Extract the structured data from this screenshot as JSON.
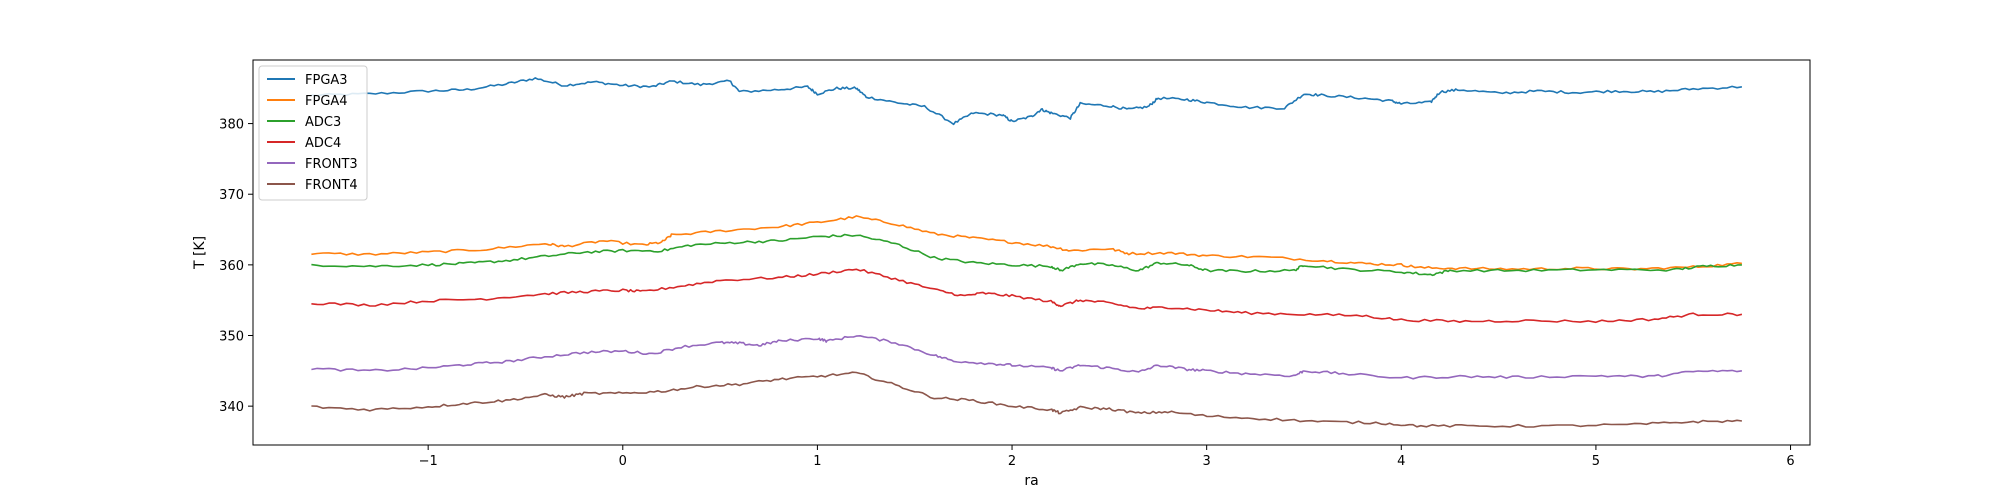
{
  "chart_data": {
    "type": "line",
    "xlabel": "ra",
    "ylabel": "T [K]",
    "xlim": [
      -1.9,
      6.1
    ],
    "ylim": [
      334.5,
      389.0
    ],
    "xticks": [
      -1,
      0,
      1,
      2,
      3,
      4,
      5,
      6
    ],
    "yticks": [
      340,
      350,
      360,
      370,
      380
    ],
    "grid": false,
    "legend_position": "top-left",
    "series": [
      {
        "name": "FPGA3",
        "color": "#1f77b4",
        "points": [
          [
            -1.6,
            384.0
          ],
          [
            -1.3,
            384.2
          ],
          [
            -1.0,
            384.6
          ],
          [
            -0.8,
            384.8
          ],
          [
            -0.6,
            385.6
          ],
          [
            -0.45,
            386.4
          ],
          [
            -0.3,
            385.4
          ],
          [
            -0.15,
            385.9
          ],
          [
            0.0,
            385.4
          ],
          [
            0.15,
            385.2
          ],
          [
            0.25,
            386.0
          ],
          [
            0.4,
            385.5
          ],
          [
            0.55,
            386.0
          ],
          [
            0.6,
            384.5
          ],
          [
            0.8,
            384.8
          ],
          [
            0.95,
            385.2
          ],
          [
            1.0,
            384.2
          ],
          [
            1.1,
            385.0
          ],
          [
            1.2,
            385.0
          ],
          [
            1.25,
            383.8
          ],
          [
            1.4,
            383.0
          ],
          [
            1.55,
            382.4
          ],
          [
            1.7,
            380.0
          ],
          [
            1.8,
            381.5
          ],
          [
            1.95,
            381.2
          ],
          [
            2.0,
            380.3
          ],
          [
            2.1,
            381.0
          ],
          [
            2.15,
            382.0
          ],
          [
            2.2,
            381.5
          ],
          [
            2.3,
            380.8
          ],
          [
            2.35,
            382.8
          ],
          [
            2.5,
            382.5
          ],
          [
            2.6,
            382.0
          ],
          [
            2.7,
            382.4
          ],
          [
            2.75,
            383.6
          ],
          [
            2.9,
            383.4
          ],
          [
            3.0,
            383.0
          ],
          [
            3.2,
            382.3
          ],
          [
            3.4,
            382.2
          ],
          [
            3.5,
            384.2
          ],
          [
            3.6,
            384.0
          ],
          [
            3.8,
            383.6
          ],
          [
            3.95,
            383.2
          ],
          [
            4.0,
            382.8
          ],
          [
            4.15,
            383.0
          ],
          [
            4.2,
            384.5
          ],
          [
            4.3,
            384.8
          ],
          [
            4.5,
            384.3
          ],
          [
            4.7,
            384.6
          ],
          [
            4.9,
            384.4
          ],
          [
            5.1,
            384.6
          ],
          [
            5.3,
            384.5
          ],
          [
            5.5,
            384.9
          ],
          [
            5.75,
            385.2
          ]
        ]
      },
      {
        "name": "FPGA4",
        "color": "#ff7f0e",
        "points": [
          [
            -1.6,
            361.6
          ],
          [
            -1.3,
            361.5
          ],
          [
            -1.0,
            361.8
          ],
          [
            -0.7,
            362.2
          ],
          [
            -0.4,
            363.0
          ],
          [
            -0.3,
            362.6
          ],
          [
            -0.1,
            363.4
          ],
          [
            0.1,
            362.8
          ],
          [
            0.2,
            363.2
          ],
          [
            0.25,
            364.2
          ],
          [
            0.5,
            364.8
          ],
          [
            0.8,
            365.4
          ],
          [
            1.0,
            366.0
          ],
          [
            1.2,
            366.8
          ],
          [
            1.4,
            365.8
          ],
          [
            1.6,
            364.4
          ],
          [
            1.8,
            363.8
          ],
          [
            2.0,
            363.2
          ],
          [
            2.2,
            362.6
          ],
          [
            2.3,
            362.0
          ],
          [
            2.5,
            362.3
          ],
          [
            2.6,
            361.6
          ],
          [
            2.8,
            361.7
          ],
          [
            3.0,
            361.3
          ],
          [
            3.3,
            361.1
          ],
          [
            3.6,
            360.6
          ],
          [
            3.8,
            360.2
          ],
          [
            4.0,
            360.0
          ],
          [
            4.1,
            359.6
          ],
          [
            4.3,
            359.5
          ],
          [
            4.6,
            359.4
          ],
          [
            4.9,
            359.5
          ],
          [
            5.2,
            359.4
          ],
          [
            5.5,
            359.7
          ],
          [
            5.75,
            360.2
          ]
        ]
      },
      {
        "name": "ADC3",
        "color": "#2ca02c",
        "points": [
          [
            -1.6,
            360.0
          ],
          [
            -1.3,
            359.8
          ],
          [
            -1.0,
            360.0
          ],
          [
            -0.8,
            360.2
          ],
          [
            -0.6,
            360.6
          ],
          [
            -0.4,
            361.2
          ],
          [
            -0.2,
            361.8
          ],
          [
            0.0,
            362.0
          ],
          [
            0.2,
            362.0
          ],
          [
            0.35,
            362.8
          ],
          [
            0.6,
            363.2
          ],
          [
            0.8,
            363.4
          ],
          [
            1.0,
            364.0
          ],
          [
            1.2,
            364.2
          ],
          [
            1.4,
            363.0
          ],
          [
            1.6,
            361.0
          ],
          [
            1.8,
            360.3
          ],
          [
            2.0,
            360.0
          ],
          [
            2.2,
            359.8
          ],
          [
            2.25,
            359.2
          ],
          [
            2.35,
            360.2
          ],
          [
            2.5,
            360.0
          ],
          [
            2.65,
            359.2
          ],
          [
            2.75,
            360.3
          ],
          [
            2.9,
            360.0
          ],
          [
            3.0,
            359.2
          ],
          [
            3.2,
            359.1
          ],
          [
            3.45,
            359.2
          ],
          [
            3.5,
            360.0
          ],
          [
            3.7,
            359.4
          ],
          [
            4.0,
            359.0
          ],
          [
            4.15,
            358.6
          ],
          [
            4.25,
            359.2
          ],
          [
            4.6,
            359.2
          ],
          [
            5.0,
            359.3
          ],
          [
            5.4,
            359.3
          ],
          [
            5.55,
            359.8
          ],
          [
            5.75,
            360.0
          ]
        ]
      },
      {
        "name": "ADC4",
        "color": "#d62728",
        "points": [
          [
            -1.6,
            354.6
          ],
          [
            -1.3,
            354.3
          ],
          [
            -1.0,
            354.9
          ],
          [
            -0.7,
            355.2
          ],
          [
            -0.4,
            355.9
          ],
          [
            -0.2,
            356.2
          ],
          [
            0.0,
            356.4
          ],
          [
            0.1,
            356.2
          ],
          [
            0.3,
            357.0
          ],
          [
            0.5,
            357.8
          ],
          [
            0.8,
            358.2
          ],
          [
            1.0,
            358.7
          ],
          [
            1.2,
            359.4
          ],
          [
            1.4,
            358.0
          ],
          [
            1.6,
            356.5
          ],
          [
            1.75,
            355.6
          ],
          [
            1.85,
            356.0
          ],
          [
            2.0,
            355.6
          ],
          [
            2.2,
            354.8
          ],
          [
            2.25,
            354.2
          ],
          [
            2.35,
            355.0
          ],
          [
            2.5,
            354.6
          ],
          [
            2.65,
            353.8
          ],
          [
            2.8,
            354.0
          ],
          [
            3.0,
            353.6
          ],
          [
            3.2,
            353.2
          ],
          [
            3.5,
            353.0
          ],
          [
            3.8,
            352.8
          ],
          [
            4.0,
            352.2
          ],
          [
            4.3,
            352.0
          ],
          [
            4.6,
            352.1
          ],
          [
            5.0,
            352.0
          ],
          [
            5.3,
            352.3
          ],
          [
            5.5,
            353.0
          ],
          [
            5.75,
            353.0
          ]
        ]
      },
      {
        "name": "FRONT3",
        "color": "#9467bd",
        "points": [
          [
            -1.6,
            345.3
          ],
          [
            -1.3,
            345.0
          ],
          [
            -1.0,
            345.4
          ],
          [
            -0.8,
            345.9
          ],
          [
            -0.6,
            346.3
          ],
          [
            -0.4,
            347.0
          ],
          [
            -0.2,
            347.6
          ],
          [
            0.0,
            347.8
          ],
          [
            0.15,
            347.4
          ],
          [
            0.3,
            348.4
          ],
          [
            0.5,
            349.0
          ],
          [
            0.6,
            348.9
          ],
          [
            0.7,
            348.6
          ],
          [
            0.8,
            349.2
          ],
          [
            1.0,
            349.6
          ],
          [
            1.05,
            349.2
          ],
          [
            1.2,
            350.0
          ],
          [
            1.4,
            349.0
          ],
          [
            1.6,
            347.2
          ],
          [
            1.7,
            346.4
          ],
          [
            1.9,
            346.0
          ],
          [
            2.0,
            345.8
          ],
          [
            2.2,
            345.4
          ],
          [
            2.25,
            345.0
          ],
          [
            2.35,
            345.8
          ],
          [
            2.5,
            345.4
          ],
          [
            2.65,
            344.8
          ],
          [
            2.75,
            345.8
          ],
          [
            2.9,
            345.2
          ],
          [
            3.0,
            345.0
          ],
          [
            3.2,
            344.6
          ],
          [
            3.45,
            344.3
          ],
          [
            3.5,
            345.0
          ],
          [
            3.7,
            344.6
          ],
          [
            4.0,
            344.0
          ],
          [
            4.3,
            344.2
          ],
          [
            4.6,
            344.1
          ],
          [
            5.0,
            344.3
          ],
          [
            5.3,
            344.2
          ],
          [
            5.5,
            344.9
          ],
          [
            5.75,
            345.0
          ]
        ]
      },
      {
        "name": "FRONT4",
        "color": "#8c564b",
        "points": [
          [
            -1.6,
            339.9
          ],
          [
            -1.3,
            339.5
          ],
          [
            -1.0,
            339.9
          ],
          [
            -0.8,
            340.4
          ],
          [
            -0.6,
            340.8
          ],
          [
            -0.4,
            341.6
          ],
          [
            -0.3,
            341.3
          ],
          [
            -0.2,
            341.8
          ],
          [
            0.0,
            341.8
          ],
          [
            0.2,
            342.1
          ],
          [
            0.4,
            342.8
          ],
          [
            0.6,
            343.1
          ],
          [
            0.8,
            343.8
          ],
          [
            1.0,
            344.2
          ],
          [
            1.2,
            344.7
          ],
          [
            1.4,
            343.0
          ],
          [
            1.6,
            341.2
          ],
          [
            1.8,
            340.8
          ],
          [
            2.0,
            340.0
          ],
          [
            2.2,
            339.5
          ],
          [
            2.25,
            339.0
          ],
          [
            2.35,
            339.8
          ],
          [
            2.5,
            339.6
          ],
          [
            2.65,
            339.0
          ],
          [
            2.8,
            339.2
          ],
          [
            3.0,
            338.6
          ],
          [
            3.3,
            338.2
          ],
          [
            3.6,
            337.8
          ],
          [
            3.9,
            337.6
          ],
          [
            4.1,
            337.2
          ],
          [
            4.4,
            337.2
          ],
          [
            4.8,
            337.2
          ],
          [
            5.2,
            337.4
          ],
          [
            5.5,
            337.8
          ],
          [
            5.75,
            337.9
          ]
        ]
      }
    ]
  }
}
